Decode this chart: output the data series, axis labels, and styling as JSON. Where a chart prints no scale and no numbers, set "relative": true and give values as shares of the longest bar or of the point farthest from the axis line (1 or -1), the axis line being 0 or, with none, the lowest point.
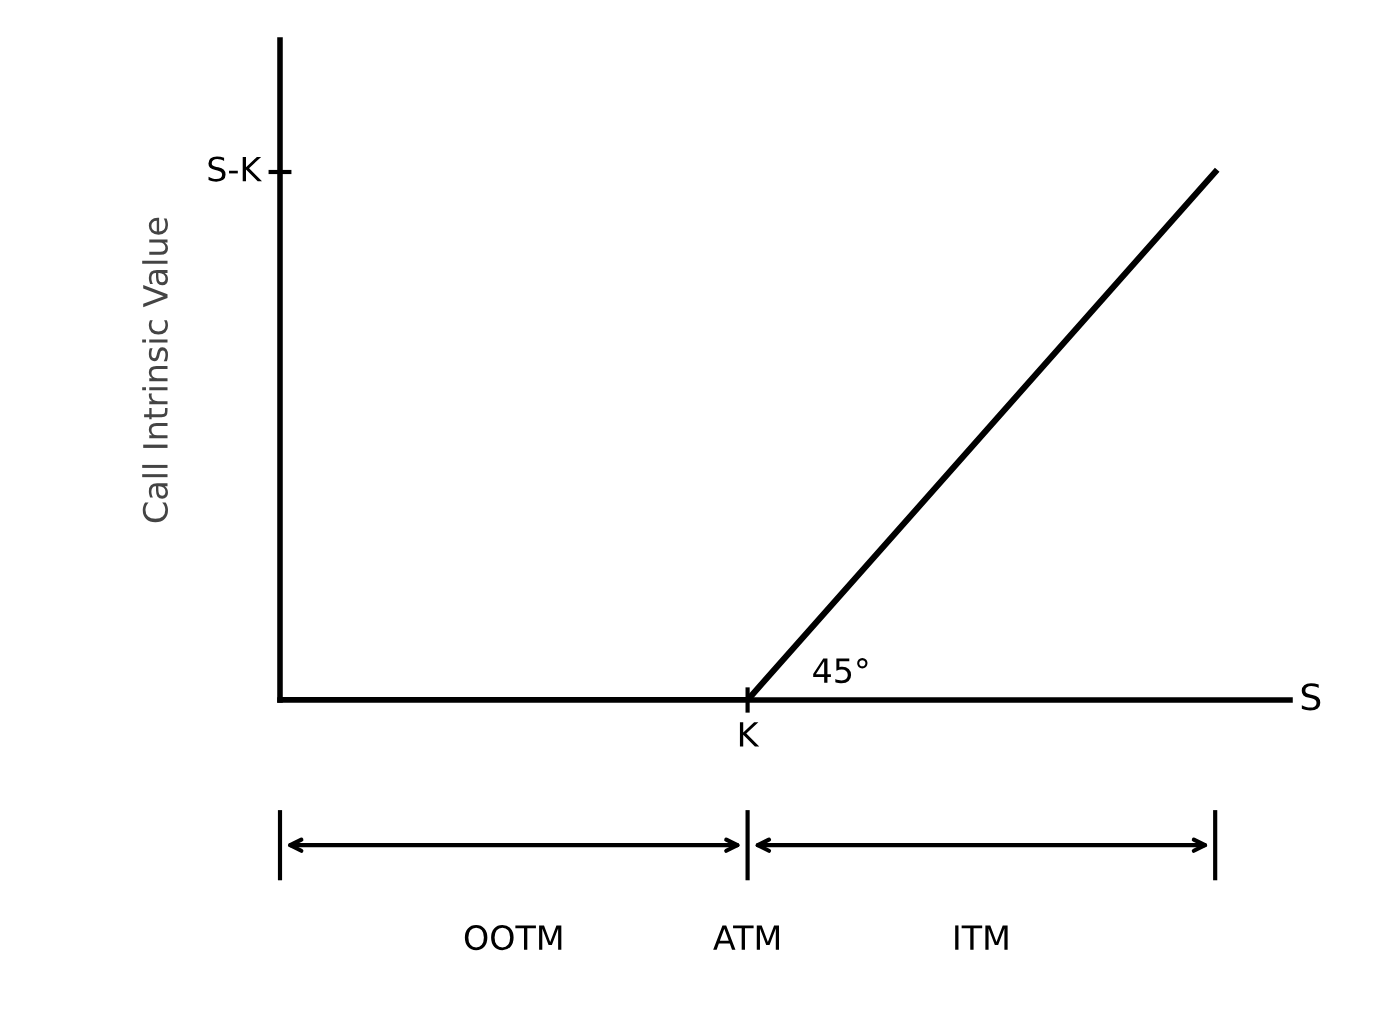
{
  "chart_data": {
    "type": "line",
    "relative": true,
    "ylabel": "Call Intrinsic Value",
    "categories": [
      null,
      null,
      null
    ],
    "series": [
      {
        "color": "#000000",
        "values": [
          0,
          0,
          1
        ]
      }
    ],
    "annotations": [
      "S-K",
      "K",
      "S",
      "45°",
      "OOTM",
      "ATM",
      "ITM"
    ],
    "legend": false,
    "marker": "none",
    "line_style": "solid"
  }
}
